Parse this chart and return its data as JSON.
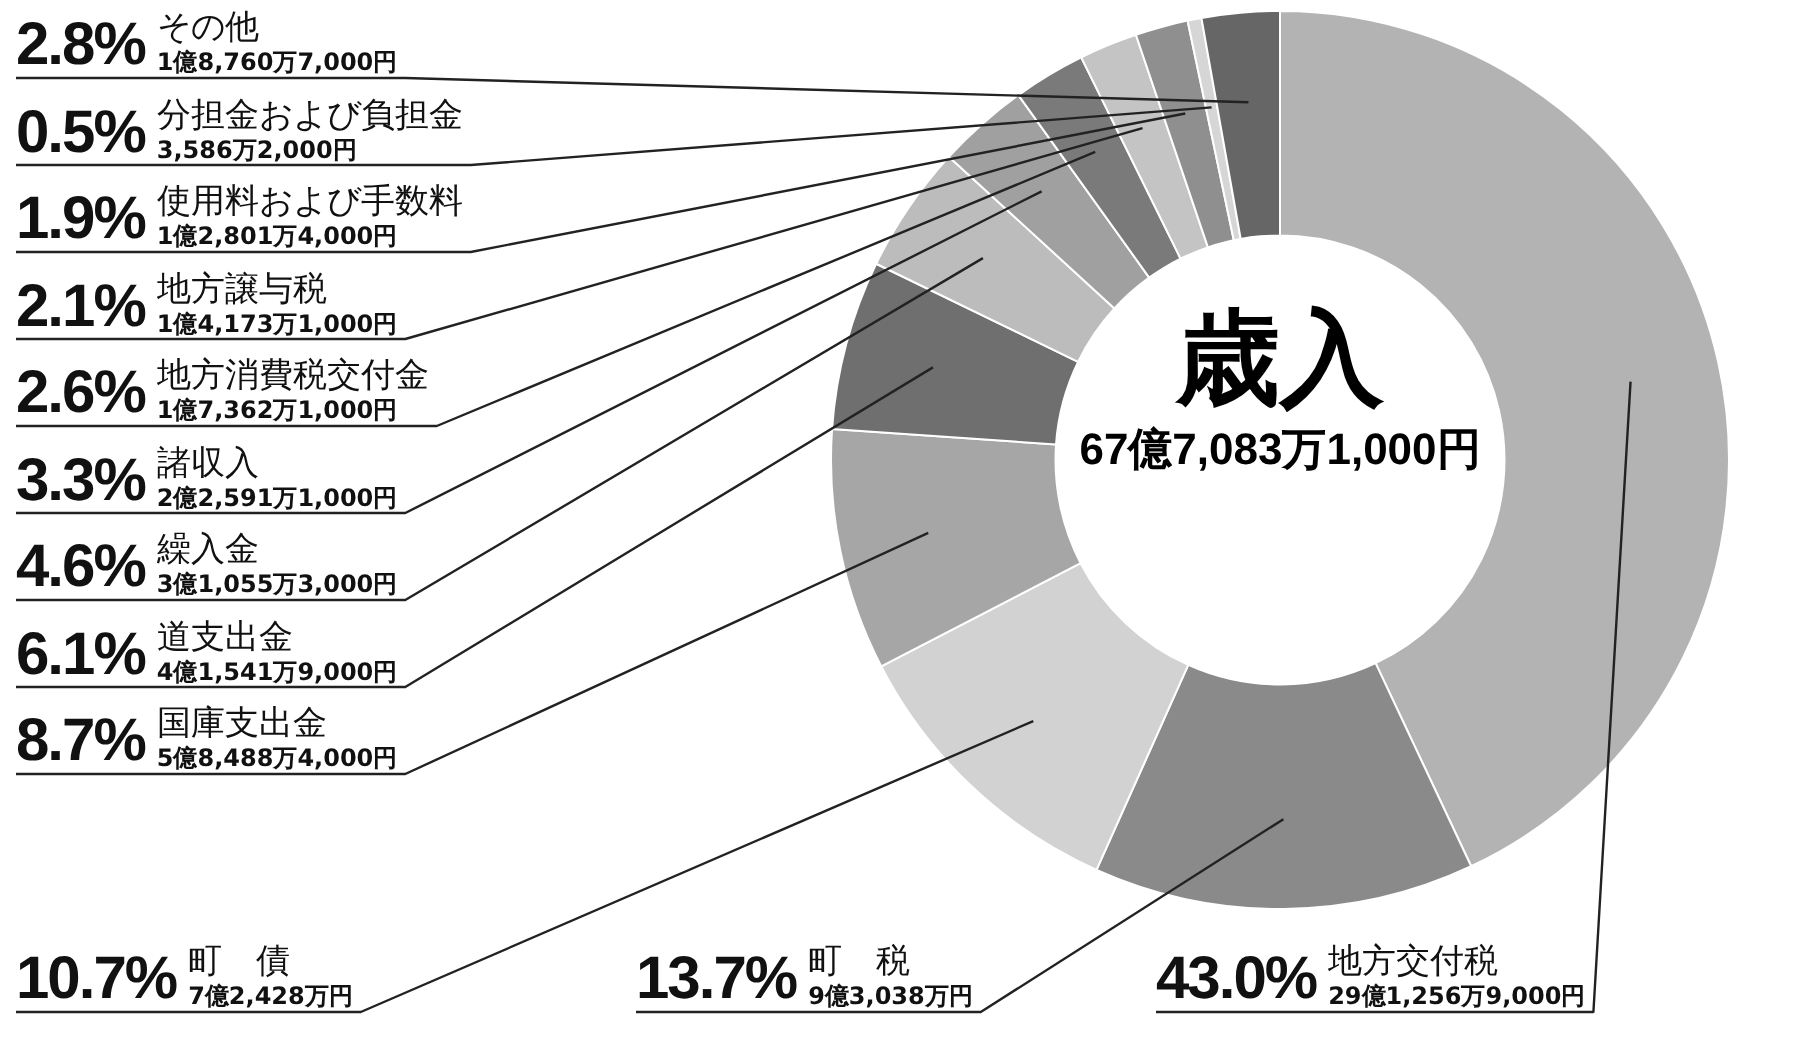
{
  "chart_data": {
    "type": "donut",
    "title": "歳入",
    "subtitle": "67億7,083万1,000円",
    "categories": [
      "地方交付税",
      "町　税",
      "町　債",
      "国庫支出金",
      "道支出金",
      "繰入金",
      "諸収入",
      "地方消費税交付金",
      "地方譲与税",
      "使用料および手数料",
      "分担金および負担金",
      "その他"
    ],
    "values": [
      43.0,
      13.7,
      10.7,
      8.7,
      6.1,
      4.6,
      3.3,
      2.6,
      2.1,
      1.9,
      0.5,
      2.8
    ],
    "colors": [
      "#b3b3b3",
      "#8a8a8a",
      "#d2d2d2",
      "#a6a6a6",
      "#6f6f6f",
      "#bcbcbc",
      "#a0a0a0",
      "#7a7a7a",
      "#c4c4c4",
      "#8f8f8f",
      "#d6d6d6",
      "#666666"
    ],
    "value_labels": [
      "43.0%",
      "13.7%",
      "10.7%",
      "8.7%",
      "6.1%",
      "4.6%",
      "3.3%",
      "2.6%",
      "2.1%",
      "1.9%",
      "0.5%",
      "2.8%"
    ],
    "annotations": [
      "29億1,256万9,000円",
      "9億3,038万円",
      "7億2,428万円",
      "5億8,488万4,000円",
      "4億1,541万9,000円",
      "3億1,055万3,000円",
      "2億2,591万1,000円",
      "1億7,362万1,000円",
      "1億4,173万1,000円",
      "1億2,801万4,000円",
      "3,586万2,000円",
      "1億8,760万7,000円"
    ],
    "legend": false
  }
}
